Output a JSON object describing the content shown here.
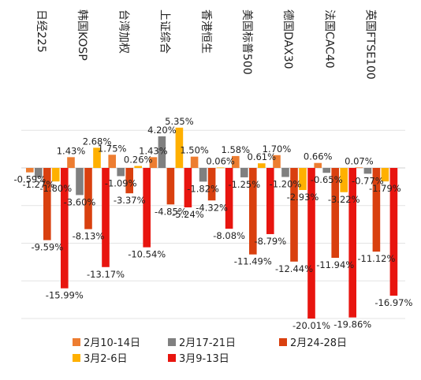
{
  "chart_data": {
    "type": "bar",
    "title": "",
    "xlabel": "",
    "ylabel": "",
    "ylim": [
      -21,
      6
    ],
    "grid": true,
    "legend_position": "bottom",
    "categories": [
      "日经225",
      "韩国KOSP",
      "台湾加权",
      "上证综合",
      "香港恒生",
      "美国标普500",
      "德国DAX30",
      "法国CAC40",
      "英国FTSE100"
    ],
    "series": [
      {
        "name": "2月10-14日",
        "color": "#ED7D31",
        "values": [
          -0.59,
          1.43,
          1.75,
          1.43,
          1.5,
          1.58,
          1.7,
          0.66,
          0.07
        ]
      },
      {
        "name": "2月17-21日",
        "color": "#808080",
        "values": [
          -1.27,
          -3.6,
          -1.09,
          4.2,
          -1.82,
          -1.25,
          -1.2,
          -0.65,
          -0.77
        ]
      },
      {
        "name": "2月24-28日",
        "color": "#D9400F",
        "values": [
          -9.59,
          -8.13,
          -3.37,
          -4.85,
          -4.32,
          -11.49,
          -12.44,
          -11.94,
          -11.12
        ]
      },
      {
        "name": "3月2-6日",
        "color": "#FFB000",
        "values": [
          -1.8,
          2.68,
          0.26,
          5.35,
          0.06,
          0.61,
          -2.93,
          -3.22,
          -1.79
        ]
      },
      {
        "name": "3月9-13日",
        "color": "#E8150F",
        "values": [
          -15.99,
          -13.17,
          -10.54,
          -5.24,
          -8.08,
          -8.79,
          -20.01,
          -19.86,
          -16.97
        ]
      }
    ],
    "value_labels": [
      [
        "-0.59%",
        "-1.27%",
        "-9.59%",
        "-1.80%",
        "-15.99%"
      ],
      [
        "1.43%",
        "-3.60%",
        "-8.13%",
        "2.68%",
        "-13.17%"
      ],
      [
        "1.75%",
        "-1.09%",
        "-3.37%",
        "0.26%",
        "-10.54%"
      ],
      [
        "1.43%",
        "4.20%",
        "-4.85%",
        "5.35%",
        "-5.24%"
      ],
      [
        "1.50%",
        "-1.82%",
        "-4.32%",
        "0.06%",
        "-8.08%"
      ],
      [
        "1.58%",
        "-1.25%",
        "-11.49%",
        "0.61%",
        "-8.79%"
      ],
      [
        "1.70%",
        "-1.20%",
        "-12.44%",
        "-2.93%",
        "-20.01%"
      ],
      [
        "0.66%",
        "-0.65%",
        "-11.94%",
        "-3.22%",
        "-19.86%"
      ],
      [
        "0.07%",
        "-0.77%",
        "-11.12%",
        "-1.79%",
        "-16.97%"
      ]
    ]
  }
}
